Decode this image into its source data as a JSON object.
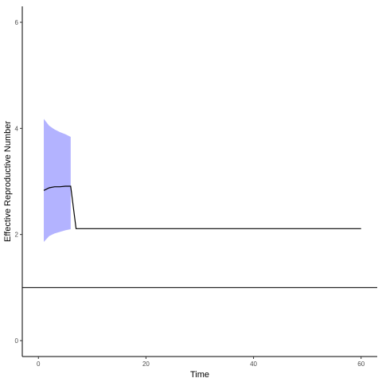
{
  "chart_data": {
    "type": "line",
    "title": "",
    "xlabel": "Time",
    "ylabel": "Effective Reproductive Number",
    "xlim": [
      -3,
      63
    ],
    "ylim": [
      -0.3,
      6.3
    ],
    "x_ticks": [
      0,
      20,
      40,
      60
    ],
    "y_ticks": [
      0,
      2,
      4,
      6
    ],
    "x_tick_labels": [
      "0",
      "20",
      "40",
      "60"
    ],
    "y_tick_labels": [
      "0",
      "2",
      "4",
      "6"
    ],
    "grid": false,
    "legend": "none",
    "series": [
      {
        "type": "line",
        "x": [
          1,
          2,
          3,
          4,
          5,
          6,
          7,
          60
        ],
        "y": [
          2.83,
          2.88,
          2.9,
          2.9,
          2.91,
          2.91,
          2.11,
          2.11
        ]
      }
    ],
    "ribbon": {
      "x": [
        1,
        2,
        3,
        4,
        5,
        6
      ],
      "lower": [
        1.86,
        1.97,
        2.02,
        2.05,
        2.08,
        2.1
      ],
      "upper": [
        4.18,
        4.05,
        3.98,
        3.93,
        3.89,
        3.84
      ],
      "color": "#b3b3ff"
    },
    "reference_line": {
      "y": 1,
      "color": "#000000"
    },
    "line_color": "#000000"
  }
}
